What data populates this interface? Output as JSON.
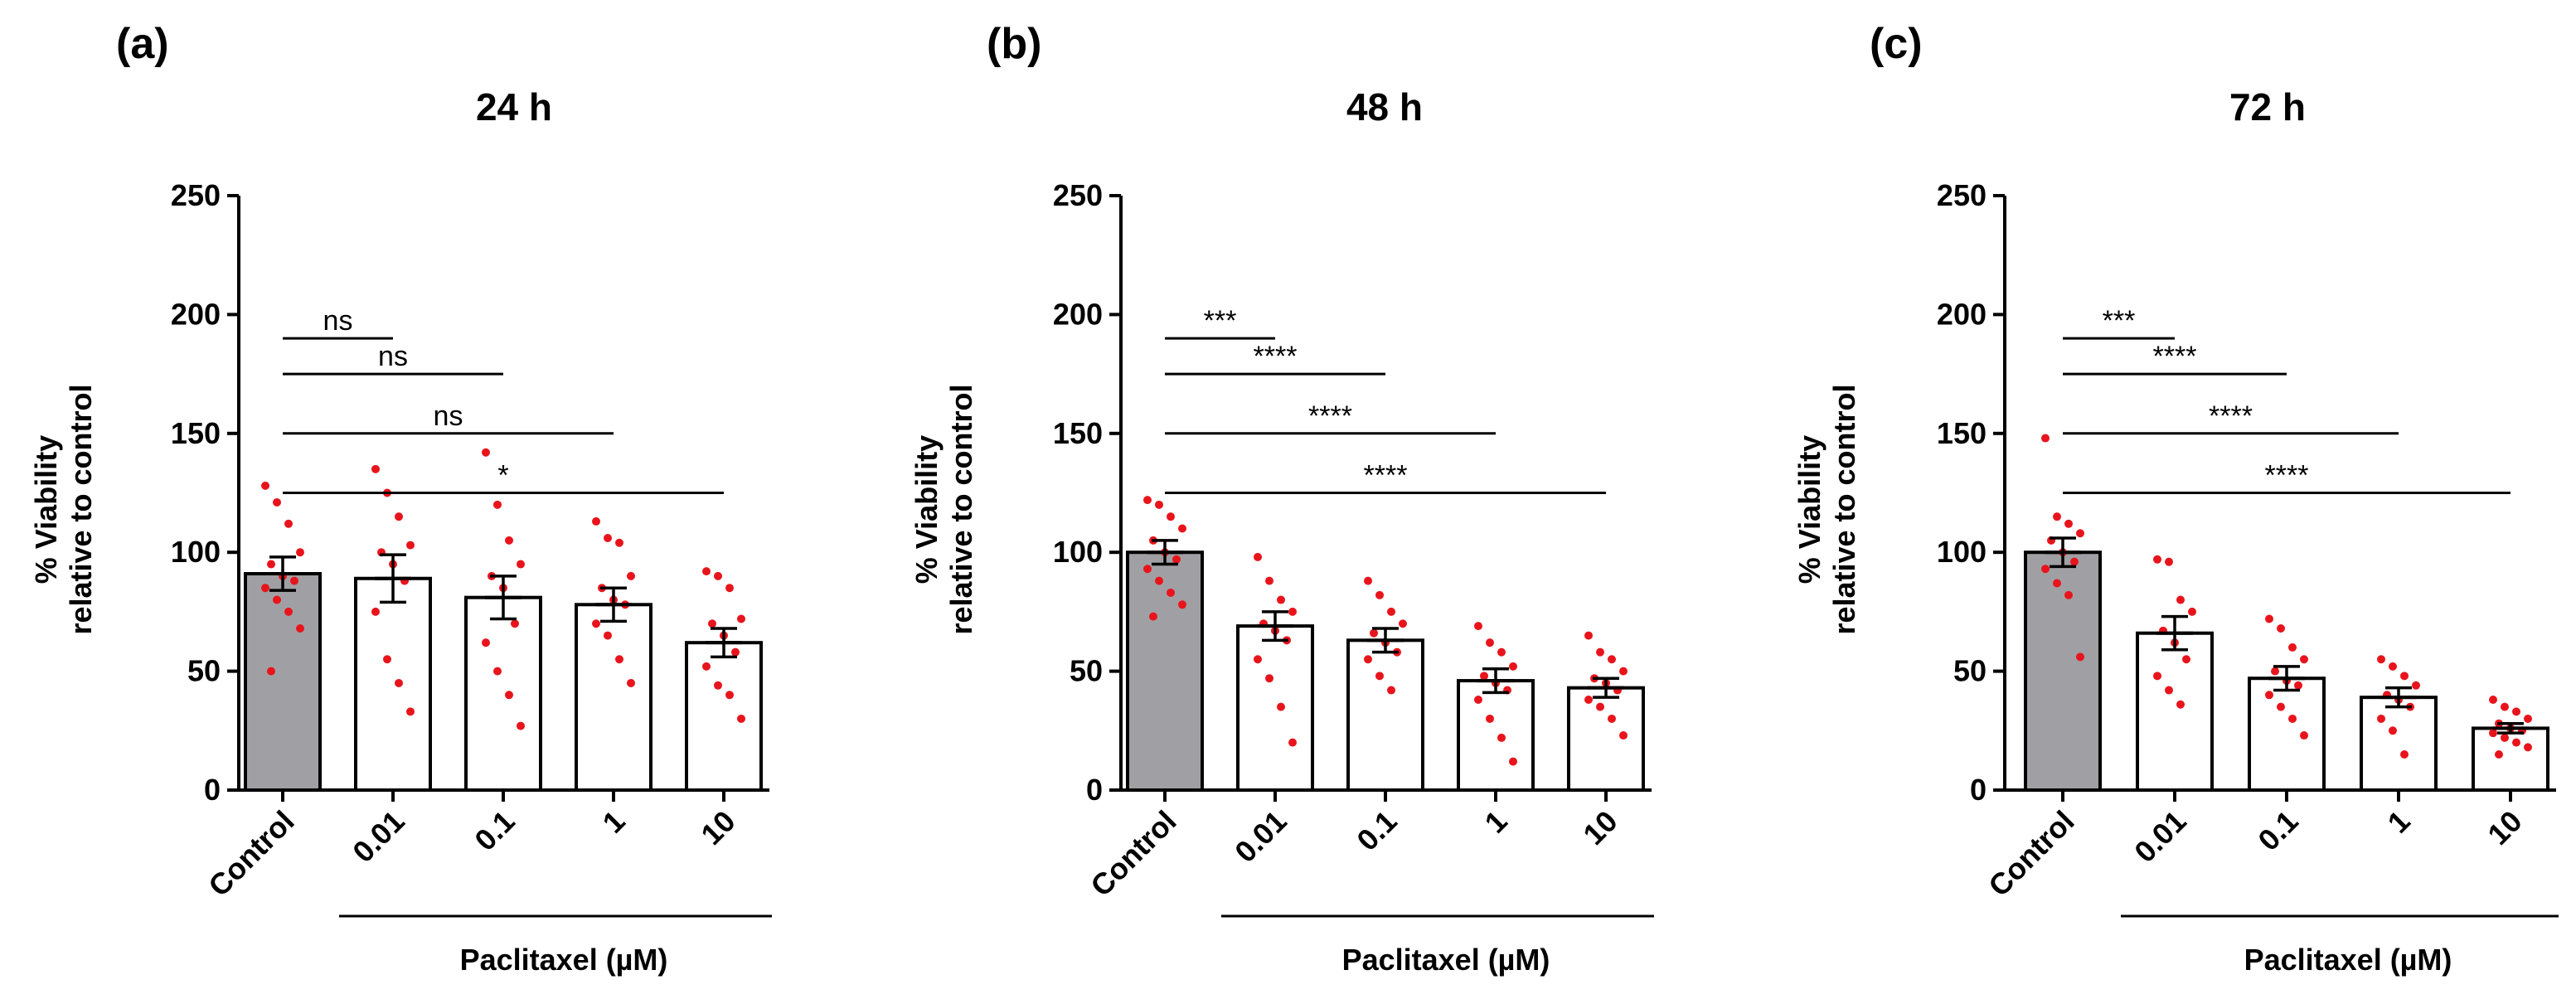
{
  "chart_data": [
    {
      "type": "bar",
      "panel": "(a)",
      "title": "24 h",
      "ylabel_line1": "% Viability",
      "ylabel_line2": "relative to control",
      "xgroup_label": "Paclitaxel (µM)",
      "ylim": [
        0,
        250
      ],
      "yticks": [
        0,
        50,
        100,
        150,
        200,
        250
      ],
      "categories": [
        "Control",
        "0.01",
        "0.1",
        "1",
        "10"
      ],
      "values": [
        91,
        89,
        81,
        78,
        62
      ],
      "sem": [
        7,
        10,
        9,
        7,
        6
      ],
      "points": [
        [
          128,
          121,
          112,
          100,
          95,
          90,
          88,
          85,
          80,
          75,
          68,
          50
        ],
        [
          135,
          125,
          115,
          103,
          100,
          95,
          88,
          75,
          55,
          45,
          33
        ],
        [
          142,
          120,
          105,
          95,
          90,
          85,
          70,
          62,
          50,
          40,
          27
        ],
        [
          113,
          106,
          104,
          90,
          85,
          80,
          78,
          70,
          65,
          55,
          45
        ],
        [
          92,
          90,
          85,
          72,
          70,
          65,
          58,
          52,
          44,
          40,
          30
        ]
      ],
      "comparisons": [
        {
          "from": "Control",
          "to": "0.01",
          "label": "ns"
        },
        {
          "from": "Control",
          "to": "0.1",
          "label": "ns"
        },
        {
          "from": "Control",
          "to": "1",
          "label": "ns"
        },
        {
          "from": "Control",
          "to": "10",
          "label": "*"
        }
      ],
      "bar_colors": [
        "#a0a0a4",
        "#ffffff",
        "#ffffff",
        "#ffffff",
        "#ffffff"
      ],
      "point_color": "#e8141c"
    },
    {
      "type": "bar",
      "panel": "(b)",
      "title": "48 h",
      "ylabel_line1": "% Viability",
      "ylabel_line2": "relative to control",
      "xgroup_label": "Paclitaxel (µM)",
      "ylim": [
        0,
        250
      ],
      "yticks": [
        0,
        50,
        100,
        150,
        200,
        250
      ],
      "categories": [
        "Control",
        "0.01",
        "0.1",
        "1",
        "10"
      ],
      "values": [
        100,
        69,
        63,
        46,
        43
      ],
      "sem": [
        5,
        6,
        5,
        5,
        4
      ],
      "points": [
        [
          122,
          120,
          115,
          110,
          105,
          100,
          97,
          93,
          88,
          83,
          78,
          73
        ],
        [
          98,
          88,
          80,
          75,
          70,
          67,
          63,
          55,
          47,
          35,
          20
        ],
        [
          88,
          82,
          75,
          70,
          66,
          62,
          58,
          55,
          48,
          42
        ],
        [
          69,
          62,
          58,
          52,
          48,
          45,
          42,
          38,
          30,
          22,
          12
        ],
        [
          65,
          58,
          55,
          50,
          47,
          45,
          42,
          38,
          35,
          30,
          23
        ]
      ],
      "comparisons": [
        {
          "from": "Control",
          "to": "0.01",
          "label": "***"
        },
        {
          "from": "Control",
          "to": "0.1",
          "label": "****"
        },
        {
          "from": "Control",
          "to": "1",
          "label": "****"
        },
        {
          "from": "Control",
          "to": "10",
          "label": "****"
        }
      ],
      "bar_colors": [
        "#a0a0a4",
        "#ffffff",
        "#ffffff",
        "#ffffff",
        "#ffffff"
      ],
      "point_color": "#e8141c"
    },
    {
      "type": "bar",
      "panel": "(c)",
      "title": "72 h",
      "ylabel_line1": "% Viability",
      "ylabel_line2": "relative to control",
      "xgroup_label": "Paclitaxel (µM)",
      "ylim": [
        0,
        250
      ],
      "yticks": [
        0,
        50,
        100,
        150,
        200,
        250
      ],
      "categories": [
        "Control",
        "0.01",
        "0.1",
        "1",
        "10"
      ],
      "values": [
        100,
        66,
        47,
        39,
        26
      ],
      "sem": [
        6,
        7,
        5,
        4,
        2
      ],
      "points": [
        [
          148,
          115,
          112,
          108,
          105,
          100,
          96,
          93,
          87,
          82,
          56
        ],
        [
          97,
          96,
          80,
          75,
          67,
          62,
          55,
          48,
          42,
          36
        ],
        [
          72,
          68,
          60,
          55,
          50,
          46,
          44,
          40,
          35,
          30,
          23
        ],
        [
          55,
          52,
          48,
          44,
          40,
          38,
          35,
          30,
          25,
          15
        ],
        [
          38,
          35,
          33,
          30,
          28,
          26,
          25,
          24,
          22,
          20,
          18,
          15
        ]
      ],
      "comparisons": [
        {
          "from": "Control",
          "to": "0.01",
          "label": "***"
        },
        {
          "from": "Control",
          "to": "0.1",
          "label": "****"
        },
        {
          "from": "Control",
          "to": "1",
          "label": "****"
        },
        {
          "from": "Control",
          "to": "10",
          "label": "****"
        }
      ],
      "bar_colors": [
        "#a0a0a4",
        "#ffffff",
        "#ffffff",
        "#ffffff",
        "#ffffff"
      ],
      "point_color": "#e8141c"
    }
  ]
}
